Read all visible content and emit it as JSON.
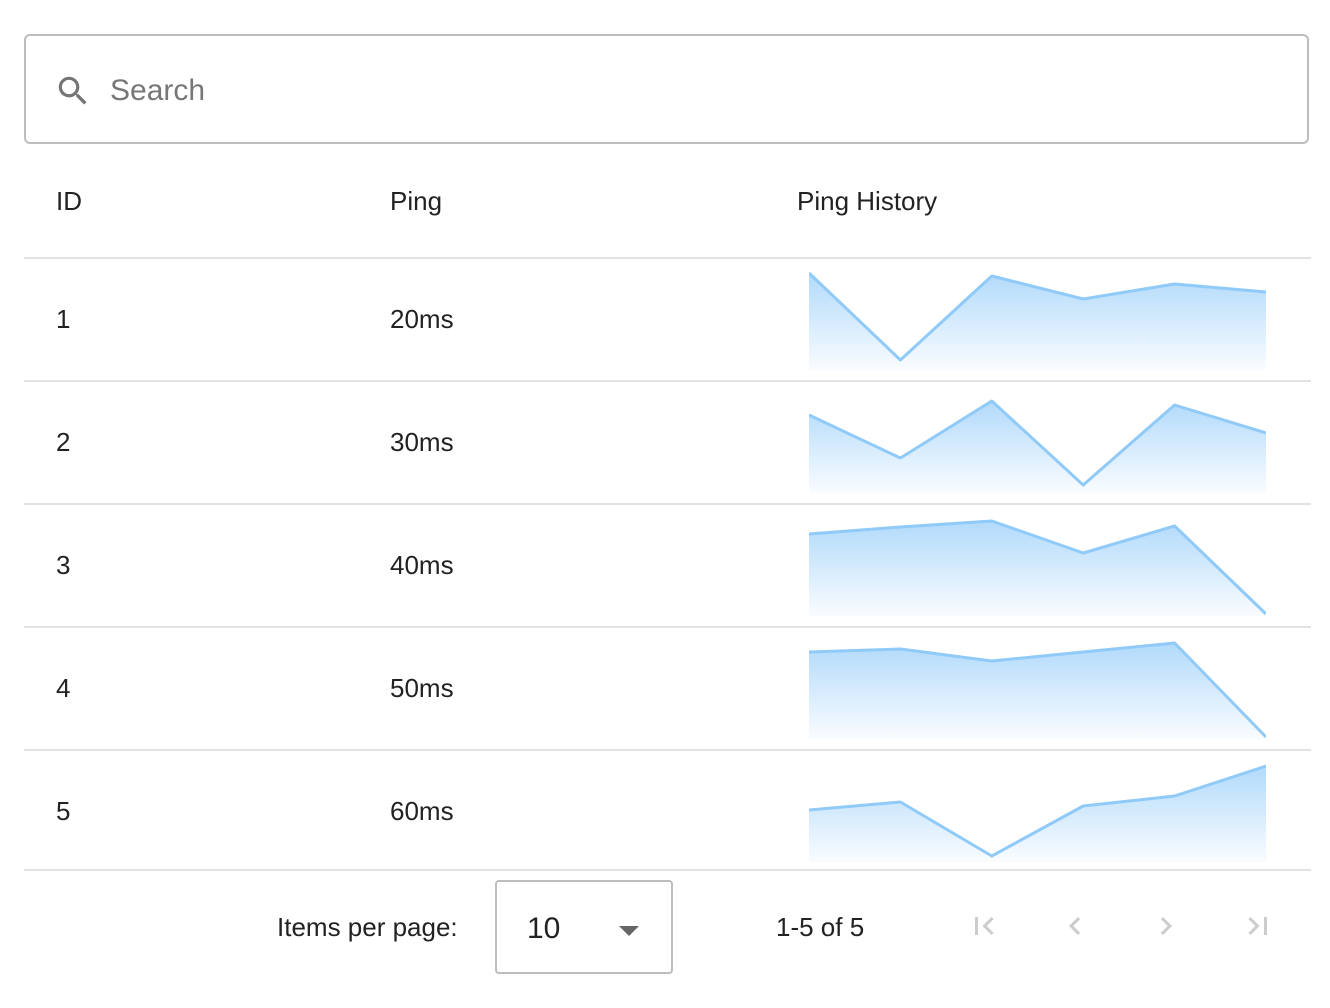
{
  "search": {
    "placeholder": "Search",
    "icon": "search-icon"
  },
  "columns": [
    "ID",
    "Ping",
    "Ping History"
  ],
  "rows": [
    {
      "id": "1",
      "ping": "20ms",
      "history": [
        97,
        10,
        94,
        71,
        86,
        78
      ]
    },
    {
      "id": "2",
      "ping": "30ms",
      "history": [
        78,
        35,
        92,
        8,
        88,
        60
      ]
    },
    {
      "id": "3",
      "ping": "40ms",
      "history": [
        82,
        89,
        95,
        63,
        90,
        2
      ]
    },
    {
      "id": "4",
      "ping": "50ms",
      "history": [
        87,
        90,
        78,
        87,
        96,
        2
      ]
    },
    {
      "id": "5",
      "ping": "60ms",
      "history": [
        52,
        60,
        6,
        56,
        66,
        96
      ]
    }
  ],
  "sparkline_color": "#90caf9",
  "pagination": {
    "items_per_page_label": "Items per page:",
    "items_per_page": "10",
    "range": "1-5 of 5",
    "first_icon": "first-page-icon",
    "prev_icon": "chevron-left-icon",
    "next_icon": "chevron-right-icon",
    "last_icon": "last-page-icon",
    "disabled_color": "#cccccc"
  }
}
